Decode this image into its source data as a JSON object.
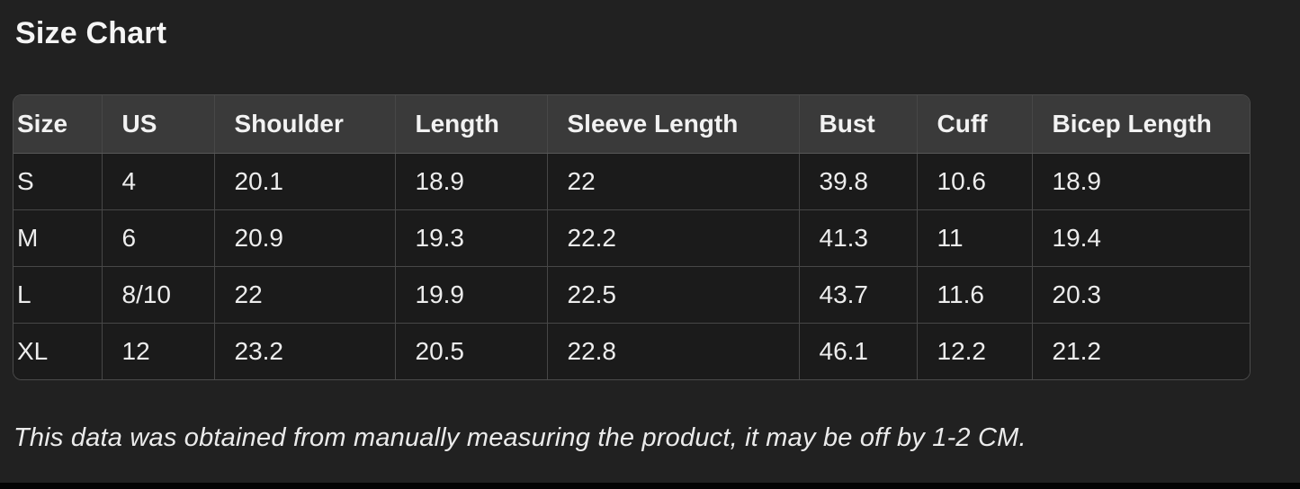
{
  "title": "Size Chart",
  "table": {
    "columns": [
      "Size",
      "US",
      "Shoulder",
      "Length",
      "Sleeve Length",
      "Bust",
      "Cuff",
      "Bicep Length"
    ],
    "rows": [
      [
        "S",
        "4",
        "20.1",
        "18.9",
        "22",
        "39.8",
        "10.6",
        "18.9"
      ],
      [
        "M",
        "6",
        "20.9",
        "19.3",
        "22.2",
        "41.3",
        "11",
        "19.4"
      ],
      [
        "L",
        "8/10",
        "22",
        "19.9",
        "22.5",
        "43.7",
        "11.6",
        "20.3"
      ],
      [
        "XL",
        "12",
        "23.2",
        "20.5",
        "22.8",
        "46.1",
        "12.2",
        "21.2"
      ]
    ]
  },
  "disclaimer": "This data was obtained from manually measuring the product, it may be off by 1-2 CM.",
  "colors": {
    "background": "#212121",
    "header_row_background": "#3a3a3a",
    "cell_background": "#1b1b1b",
    "border": "#4b4b4b",
    "text": "#f2f2f2",
    "bottom_bar": "#030303"
  }
}
